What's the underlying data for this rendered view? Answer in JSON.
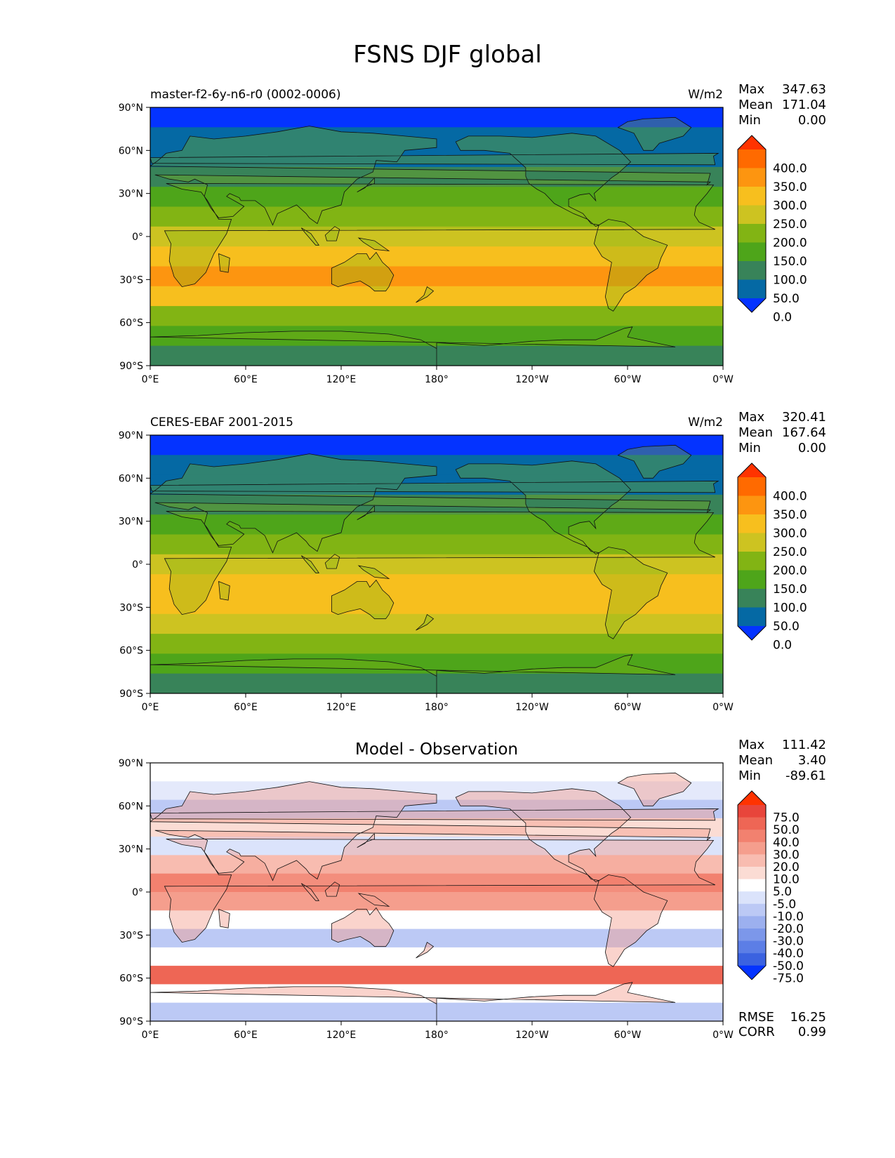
{
  "figure": {
    "title": "FSNS DJF global"
  },
  "lat_ticks": [
    "90°N",
    "60°N",
    "30°N",
    "0°",
    "30°S",
    "60°S",
    "90°S"
  ],
  "lon_ticks": [
    "0°E",
    "60°E",
    "120°E",
    "180°",
    "120°W",
    "60°W",
    "0°W"
  ],
  "panels": [
    {
      "id": "model",
      "left_title": "master-f2-6y-n6-r0 (0002-0006)",
      "center_title": "",
      "right_title": "W/m2",
      "stats": [
        {
          "label": "Max",
          "value": "347.63"
        },
        {
          "label": "Mean",
          "value": "171.04"
        },
        {
          "label": "Min",
          "value": "0.00"
        }
      ],
      "colorbar": {
        "labels": [
          "400.0",
          "350.0",
          "300.0",
          "250.0",
          "200.0",
          "150.0",
          "100.0",
          "50.0",
          "0.0"
        ],
        "colors_top_to_bottom": [
          "#ff3300",
          "#ff6a00",
          "#fd9510",
          "#f7bf1e",
          "#cdc321",
          "#82b414",
          "#4ea51a",
          "#388359",
          "#0569a4",
          "#0433ff"
        ]
      },
      "field_colors_top_to_bottom": [
        "#0433ff",
        "#0569a4",
        "#0569a4",
        "#388359",
        "#4ea51a",
        "#82b414",
        "#cdc321",
        "#f7bf1e",
        "#fd9510",
        "#f7bf1e",
        "#82b414",
        "#4ea51a",
        "#388359"
      ],
      "bottom_stats": []
    },
    {
      "id": "obs",
      "left_title": "CERES-EBAF 2001-2015",
      "center_title": "",
      "right_title": "W/m2",
      "stats": [
        {
          "label": "Max",
          "value": "320.41"
        },
        {
          "label": "Mean",
          "value": "167.64"
        },
        {
          "label": "Min",
          "value": "0.00"
        }
      ],
      "colorbar": {
        "labels": [
          "400.0",
          "350.0",
          "300.0",
          "250.0",
          "200.0",
          "150.0",
          "100.0",
          "50.0",
          "0.0"
        ],
        "colors_top_to_bottom": [
          "#ff3300",
          "#ff6a00",
          "#fd9510",
          "#f7bf1e",
          "#cdc321",
          "#82b414",
          "#4ea51a",
          "#388359",
          "#0569a4",
          "#0433ff"
        ]
      },
      "field_colors_top_to_bottom": [
        "#0433ff",
        "#0569a4",
        "#0569a4",
        "#388359",
        "#4ea51a",
        "#82b414",
        "#cdc321",
        "#f7bf1e",
        "#f7bf1e",
        "#cdc321",
        "#82b414",
        "#4ea51a",
        "#388359"
      ],
      "bottom_stats": []
    },
    {
      "id": "diff",
      "left_title": "",
      "center_title": "Model - Observation",
      "right_title": "",
      "stats": [
        {
          "label": "Max",
          "value": "111.42"
        },
        {
          "label": "Mean",
          "value": "3.40"
        },
        {
          "label": "Min",
          "value": "-89.61"
        }
      ],
      "colorbar": {
        "labels": [
          "75.0",
          "50.0",
          "40.0",
          "30.0",
          "20.0",
          "10.0",
          "5.0",
          "-5.0",
          "-10.0",
          "-20.0",
          "-30.0",
          "-40.0",
          "-50.0",
          "-75.0"
        ],
        "colors_top_to_bottom": [
          "#ff3300",
          "#e8453b",
          "#ee6655",
          "#f2816f",
          "#f59e8d",
          "#f8bcb0",
          "#fbdcd4",
          "#ffffff",
          "#dbe3fb",
          "#bcc9f5",
          "#9cb0ef",
          "#7c97ea",
          "#5c7ee6",
          "#3b62e0",
          "#0433ff"
        ]
      },
      "field_colors_top_to_bottom": [
        "#ffffff",
        "#e4e9fb",
        "#bcc9f5",
        "#fbdcd4",
        "#dbe3fb",
        "#f8bcb0",
        "#f2816f",
        "#f59e8d",
        "#ffffff",
        "#bcc9f5",
        "#ffffff",
        "#ee6655",
        "#ffffff",
        "#bcc9f5"
      ],
      "bottom_stats": [
        {
          "label": "RMSE",
          "value": "16.25"
        },
        {
          "label": "CORR",
          "value": "0.99"
        }
      ]
    }
  ]
}
